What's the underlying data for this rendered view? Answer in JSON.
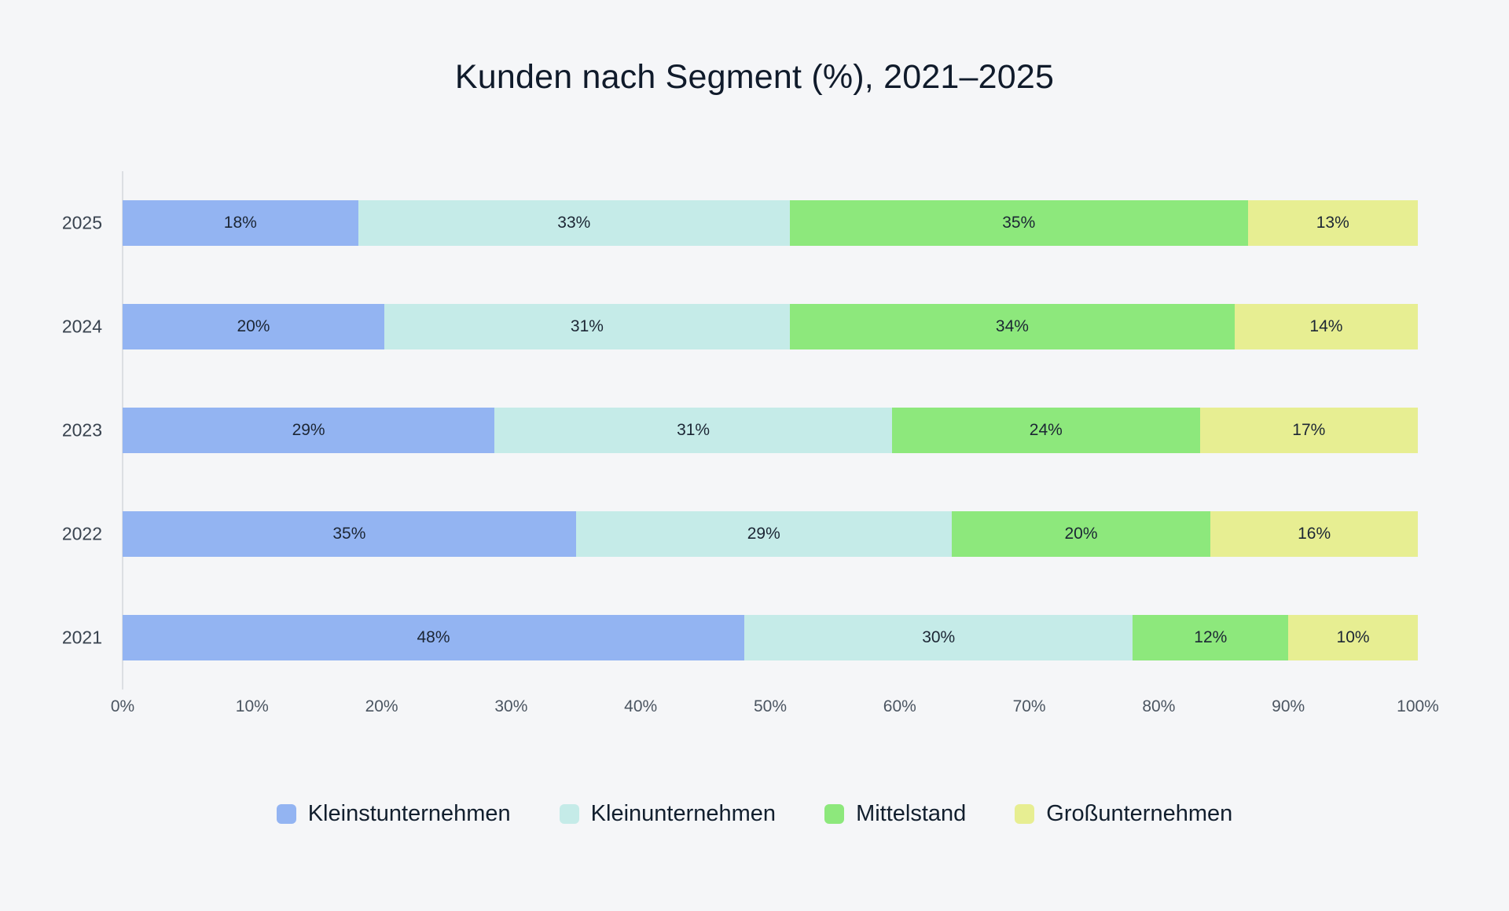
{
  "page": {
    "background_color": "#f5f6f8"
  },
  "chart_data": {
    "type": "bar",
    "orientation": "horizontal",
    "stacked": true,
    "title": "Kunden nach Segment (%), 2021–2025",
    "categories": [
      "2025",
      "2024",
      "2023",
      "2022",
      "2021"
    ],
    "series": [
      {
        "name": "Kleinstunternehmen",
        "color": "#93b4f2",
        "values": [
          18,
          20,
          29,
          35,
          48
        ]
      },
      {
        "name": "Kleinunternehmen",
        "color": "#c5ebe8",
        "values": [
          33,
          31,
          31,
          29,
          30
        ]
      },
      {
        "name": "Mittelstand",
        "color": "#8de87c",
        "values": [
          35,
          34,
          24,
          20,
          12
        ]
      },
      {
        "name": "Großunternehmen",
        "color": "#e7ee92",
        "values": [
          13,
          14,
          17,
          16,
          10
        ]
      }
    ],
    "value_suffix": "%",
    "x_ticks": [
      "0%",
      "10%",
      "20%",
      "30%",
      "40%",
      "50%",
      "60%",
      "70%",
      "80%",
      "90%",
      "100%"
    ],
    "xlim": [
      0,
      100
    ],
    "grid": false,
    "legend_position": "bottom"
  }
}
